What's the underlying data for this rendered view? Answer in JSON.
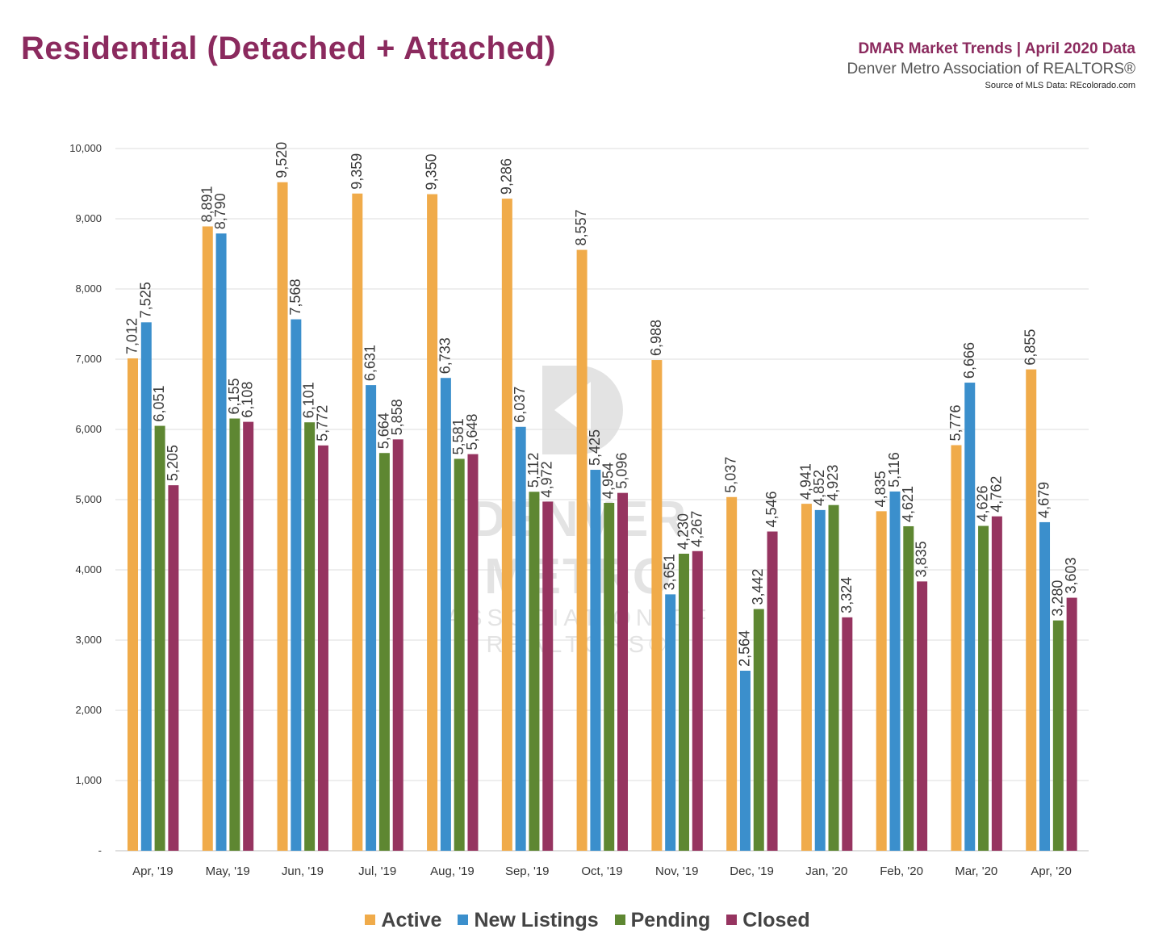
{
  "header": {
    "title": "Residential (Detached + Attached)",
    "line1": "DMAR Market Trends | April 2020 Data",
    "line2": "Denver Metro Association of REALTORS®",
    "line3": "Source of MLS Data: REcolorado.com"
  },
  "watermark": {
    "line1": "DENVER METRO",
    "line2": "ASSOCIATION OF REALTORS®"
  },
  "chart_data": {
    "type": "bar",
    "categories": [
      "Apr, '19",
      "May, '19",
      "Jun, '19",
      "Jul, '19",
      "Aug, '19",
      "Sep, '19",
      "Oct, '19",
      "Nov, '19",
      "Dec, '19",
      "Jan, '20",
      "Feb, '20",
      "Mar, '20",
      "Apr, '20"
    ],
    "series": [
      {
        "name": "Active",
        "color": "#f0ab4a",
        "values": [
          7012,
          8891,
          9520,
          9359,
          9350,
          9286,
          8557,
          6988,
          5037,
          4941,
          4835,
          5776,
          6855
        ]
      },
      {
        "name": "New Listings",
        "color": "#3b8fcc",
        "values": [
          7525,
          8790,
          7568,
          6631,
          6733,
          6037,
          5425,
          3651,
          2564,
          4852,
          5116,
          6666,
          4679
        ]
      },
      {
        "name": "Pending",
        "color": "#5e8732",
        "values": [
          6051,
          6155,
          6101,
          5664,
          5581,
          5112,
          4954,
          4230,
          3442,
          4923,
          4621,
          4626,
          3280
        ]
      },
      {
        "name": "Closed",
        "color": "#963460",
        "values": [
          5205,
          6108,
          5772,
          5858,
          5648,
          4972,
          5096,
          4267,
          4546,
          3324,
          3835,
          4762,
          3603
        ]
      }
    ],
    "y_ticks": [
      "-",
      "1,000",
      "2,000",
      "3,000",
      "4,000",
      "5,000",
      "6,000",
      "7,000",
      "8,000",
      "9,000",
      "10,000"
    ],
    "ylim": [
      0,
      10000
    ],
    "grid": true,
    "legend": "bottom",
    "data_labels": true
  }
}
